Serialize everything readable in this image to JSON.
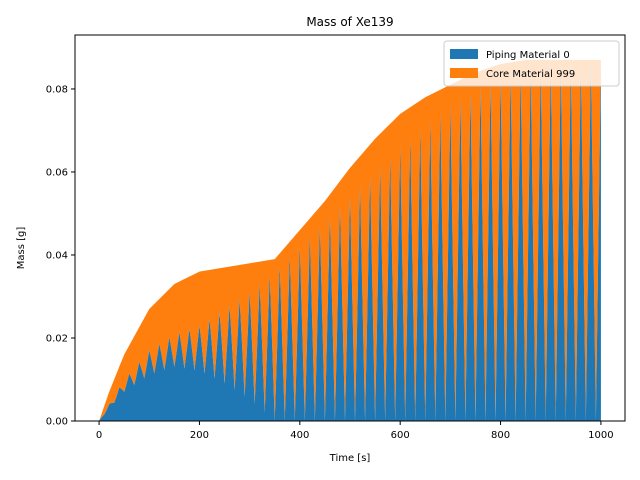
{
  "chart_data": {
    "type": "area",
    "stacked": true,
    "title": "Mass of Xe139",
    "xlabel": "Time [s]",
    "ylabel": "Mass [g]",
    "xlim": [
      -48,
      1048
    ],
    "ylim": [
      0,
      0.093
    ],
    "xticks": [
      0,
      200,
      400,
      600,
      800,
      1000
    ],
    "xtick_labels": [
      "0",
      "200",
      "400",
      "600",
      "800",
      "1000"
    ],
    "yticks": [
      0,
      0.02,
      0.04,
      0.06,
      0.08
    ],
    "ytick_labels": [
      "0.00",
      "0.02",
      "0.04",
      "0.06",
      "0.08"
    ],
    "grid": false,
    "legend_position": "top-right",
    "series": [
      {
        "name": "Piping Material 0",
        "color": "#1f77b4",
        "description": "oscillating component, peaks rise to the total envelope while troughs decay toward 0",
        "envelope_peak_x": [
          0,
          20,
          50,
          100,
          150,
          200,
          250,
          300,
          350,
          400,
          450,
          500,
          550,
          600,
          650,
          700,
          750,
          800,
          850,
          900,
          950,
          1000
        ],
        "envelope_peak_y": [
          0.0,
          0.004,
          0.01,
          0.017,
          0.021,
          0.023,
          0.027,
          0.031,
          0.036,
          0.042,
          0.048,
          0.054,
          0.06,
          0.066,
          0.071,
          0.076,
          0.08,
          0.083,
          0.085,
          0.086,
          0.086,
          0.087
        ],
        "trough_x": [
          0,
          20,
          50,
          100,
          150,
          200,
          250,
          300,
          350,
          400,
          1000
        ],
        "trough_y": [
          0.0,
          0.003,
          0.007,
          0.011,
          0.013,
          0.012,
          0.009,
          0.005,
          0.0,
          0.0,
          0.0
        ]
      },
      {
        "name": "Core Material 999",
        "color": "#ff7f0e",
        "description": "stacked on top; total mass envelope",
        "total_x": [
          0,
          20,
          50,
          100,
          150,
          200,
          250,
          300,
          350,
          400,
          450,
          500,
          550,
          600,
          650,
          700,
          750,
          800,
          850,
          900,
          950,
          1000
        ],
        "total_y": [
          0.0,
          0.007,
          0.016,
          0.027,
          0.033,
          0.036,
          0.037,
          0.038,
          0.039,
          0.046,
          0.053,
          0.061,
          0.068,
          0.074,
          0.078,
          0.081,
          0.084,
          0.086,
          0.087,
          0.087,
          0.087,
          0.087
        ]
      }
    ],
    "oscillation_period_s": 20
  }
}
